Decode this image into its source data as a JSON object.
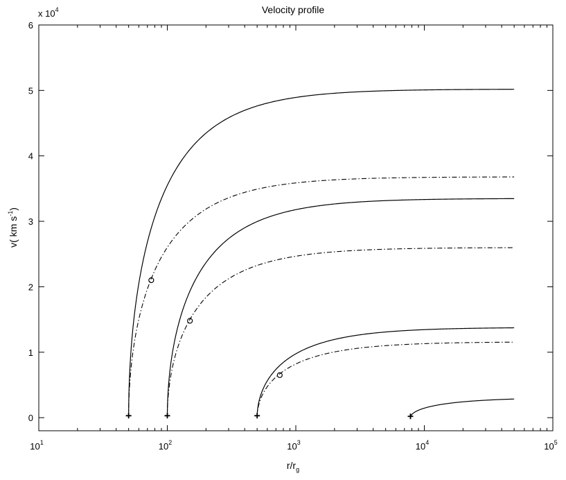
{
  "chart_data": {
    "type": "line",
    "title": "Velocity profile",
    "xlabel": {
      "base": "r/r",
      "sub": "g"
    },
    "ylabel": {
      "main": "v( km s",
      "sup": "-1",
      "close": ")"
    },
    "xscale": "log",
    "xlim": [
      10,
      100000
    ],
    "ylim": [
      -2000,
      60000
    ],
    "y_multiplier": {
      "base": "x 10",
      "exp": "4"
    },
    "grid": false,
    "x_ticks": [
      {
        "value": 10,
        "base": "10",
        "exp": "1"
      },
      {
        "value": 100,
        "base": "10",
        "exp": "2"
      },
      {
        "value": 1000,
        "base": "10",
        "exp": "3"
      },
      {
        "value": 10000,
        "base": "10",
        "exp": "4"
      },
      {
        "value": 100000,
        "base": "10",
        "exp": "5"
      }
    ],
    "y_ticks": [
      {
        "value": 0,
        "label": "0"
      },
      {
        "value": 10000,
        "label": "1"
      },
      {
        "value": 20000,
        "label": "2"
      },
      {
        "value": 30000,
        "label": "3"
      },
      {
        "value": 40000,
        "label": "4"
      },
      {
        "value": 50000,
        "label": "5"
      },
      {
        "value": 60000,
        "label": "6"
      }
    ],
    "series": [
      {
        "style": "solid",
        "r0": 50,
        "vinf": 50200,
        "r_end": 50000
      },
      {
        "style": "dashdot",
        "r0": 50,
        "vinf": 36800,
        "r_end": 50000
      },
      {
        "style": "solid",
        "r0": 100,
        "vinf": 33500,
        "r_end": 50000
      },
      {
        "style": "dashdot",
        "r0": 100,
        "vinf": 26000,
        "r_end": 50000
      },
      {
        "style": "solid",
        "r0": 500,
        "vinf": 13800,
        "r_end": 50000
      },
      {
        "style": "dashdot",
        "r0": 500,
        "vinf": 11600,
        "r_end": 50000
      },
      {
        "style": "solid",
        "r0": 7800,
        "vinf": 3100,
        "r_end": 50000
      }
    ],
    "launch_points": [
      {
        "r": 50,
        "v": 300
      },
      {
        "r": 100,
        "v": 300
      },
      {
        "r": 500,
        "v": 300
      },
      {
        "r": 7800,
        "v": 200
      }
    ],
    "sonic_points": [
      {
        "r": 75,
        "v": 21000
      },
      {
        "r": 150,
        "v": 14800
      },
      {
        "r": 750,
        "v": 6500
      }
    ]
  }
}
